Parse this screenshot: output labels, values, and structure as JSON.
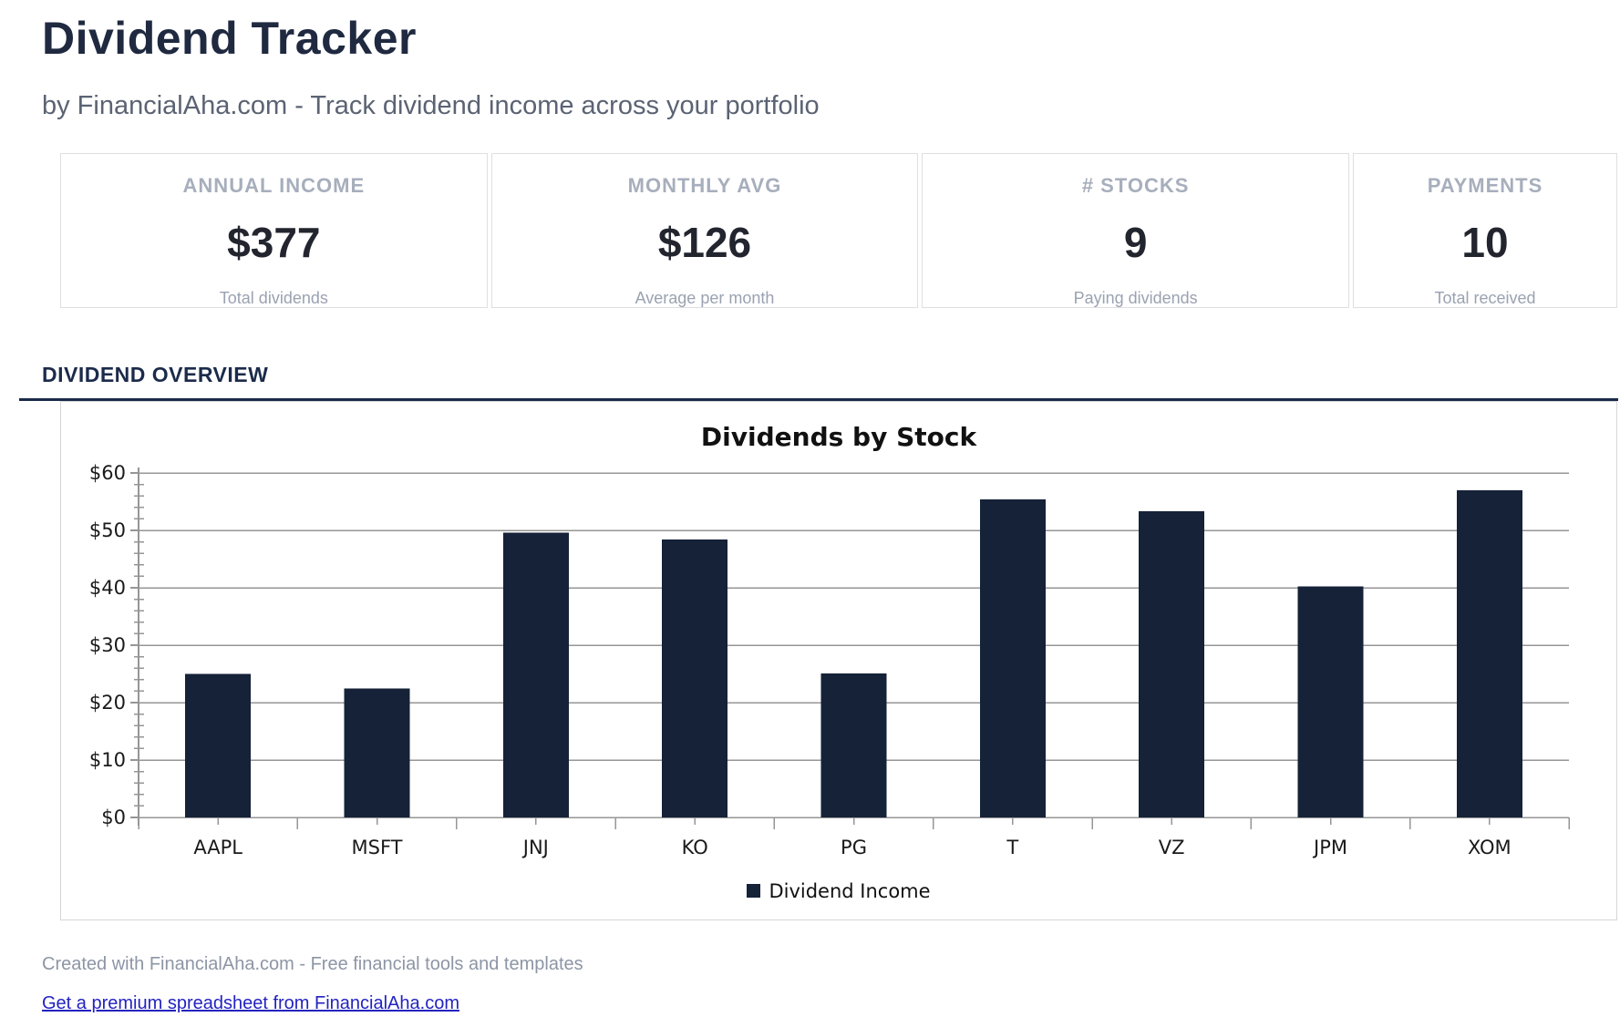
{
  "page": {
    "title": "Dividend Tracker",
    "subtitle": "by FinancialAha.com - Track dividend income across your portfolio"
  },
  "stats": [
    {
      "label": "ANNUAL INCOME",
      "value": "$377",
      "caption": "Total dividends"
    },
    {
      "label": "MONTHLY AVG",
      "value": "$126",
      "caption": "Average per month"
    },
    {
      "label": "# STOCKS",
      "value": "9",
      "caption": "Paying dividends"
    },
    {
      "label": "PAYMENTS",
      "value": "10",
      "caption": "Total received"
    }
  ],
  "section": {
    "heading": "DIVIDEND OVERVIEW"
  },
  "chart_data": {
    "type": "bar",
    "title": "Dividends by Stock",
    "categories": [
      "AAPL",
      "MSFT",
      "JNJ",
      "KO",
      "PG",
      "T",
      "VZ",
      "JPM",
      "XOM"
    ],
    "values": [
      25.0,
      22.5,
      49.6,
      48.4,
      25.1,
      55.4,
      53.3,
      40.2,
      57.0
    ],
    "series_name": "Dividend Income",
    "xlabel": "",
    "ylabel": "",
    "ylim": [
      0,
      60
    ],
    "ytick_step": 10,
    "ytick_minor": 2,
    "ytick_prefix": "$",
    "grid": true,
    "legend_position": "bottom",
    "bar_color": "#152238",
    "grid_color": "#969696"
  },
  "footer": {
    "credit": "Created with FinancialAha.com - Free financial tools and templates",
    "link": "Get a premium spreadsheet from FinancialAha.com"
  }
}
